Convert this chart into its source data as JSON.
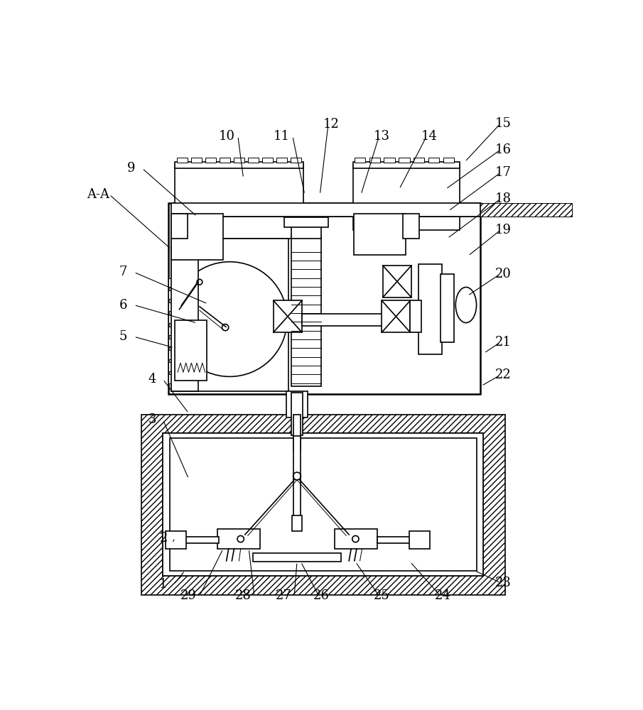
{
  "bg_color": "#ffffff",
  "lc": "#000000",
  "lw": 1.2,
  "tlw": 0.7,
  "thk": 1.8,
  "fig_w": 9.05,
  "fig_h": 10.0
}
